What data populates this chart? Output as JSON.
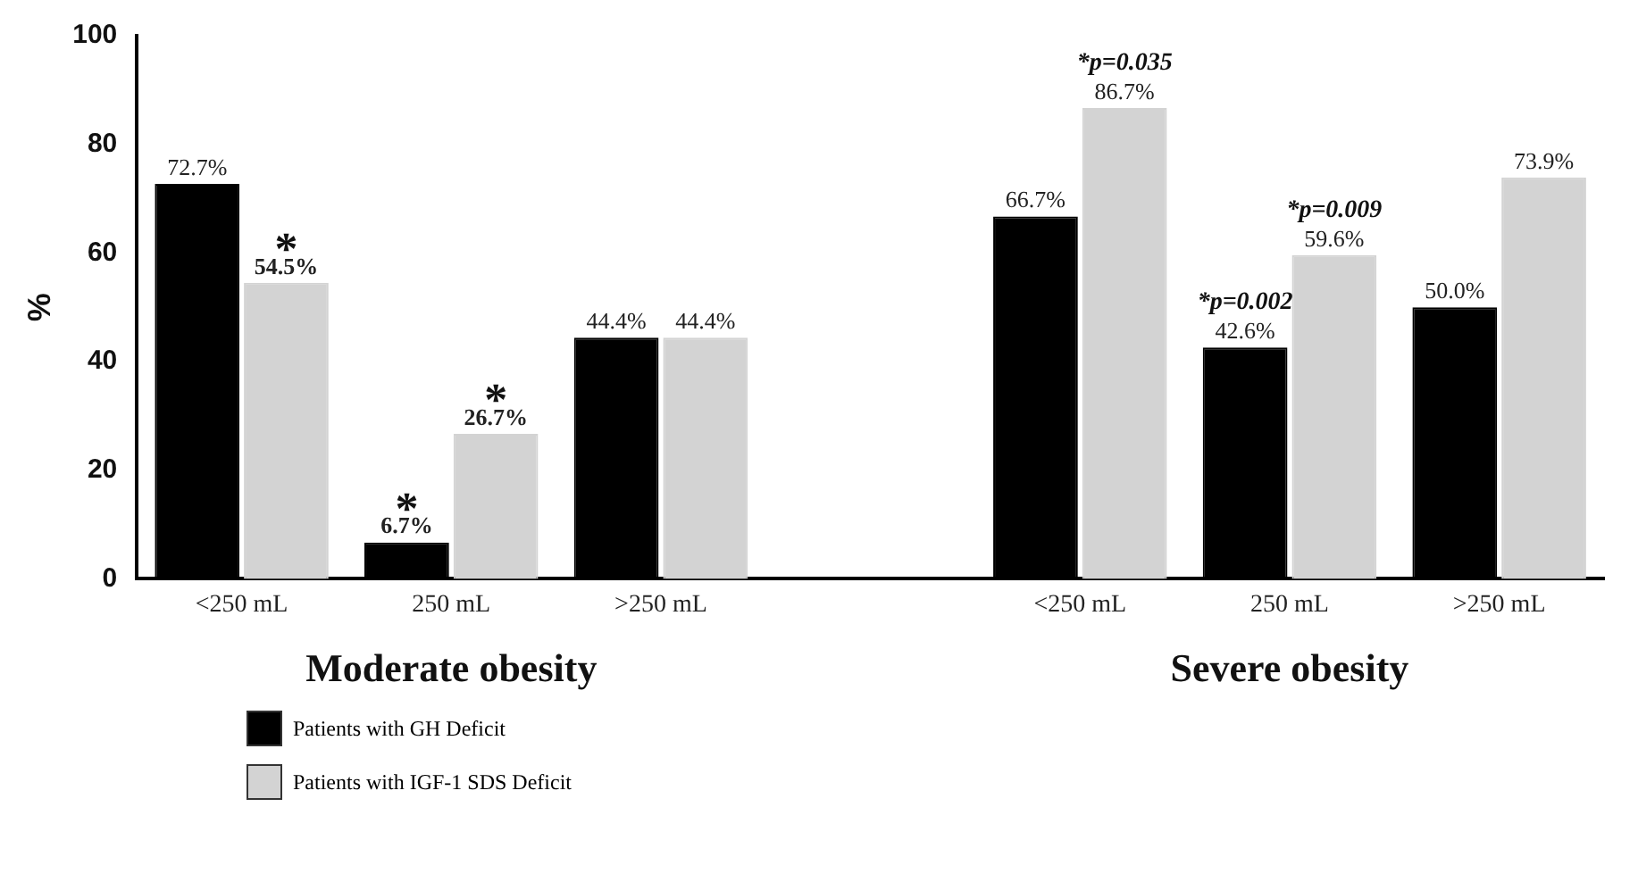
{
  "chart_data": {
    "type": "bar",
    "ylabel": "%",
    "categories": [
      "<250 mL",
      "250 mL",
      ">250 mL",
      null,
      "<250 mL",
      "250 mL",
      ">250 mL"
    ],
    "series": [
      {
        "name": "Patients with GH Deficit",
        "color": "#000000",
        "values": [
          72.7,
          6.7,
          44.4,
          null,
          66.7,
          42.6,
          50.0
        ],
        "value_labels": [
          "72.7%",
          "6.7%",
          "44.4%",
          null,
          "66.7%",
          "42.6%",
          "50.0%"
        ]
      },
      {
        "name": "Patients with IGF-1 SDS Deficit",
        "color": "#d3d3d3",
        "values": [
          54.5,
          26.7,
          44.4,
          null,
          86.7,
          59.6,
          73.9
        ],
        "value_labels": [
          "54.5%",
          "26.7%",
          "44.4%",
          null,
          "86.7%",
          "59.6%",
          "73.9%"
        ]
      }
    ],
    "ylim": [
      0,
      100
    ],
    "yticks": [
      0,
      20,
      40,
      60,
      80,
      100
    ],
    "grid": false,
    "legend": "bottom left",
    "annotations": [
      "Moderate obesity",
      "Severe obesity",
      {
        "text": "*",
        "x": "<250 mL",
        "y": 54.5
      },
      {
        "text": "*",
        "x": "250 mL",
        "y": 6.7
      },
      {
        "text": "*",
        "x": "250 mL",
        "y": 26.7
      },
      "*p=0.035",
      "*p=0.002",
      "*p=0.009"
    ]
  }
}
